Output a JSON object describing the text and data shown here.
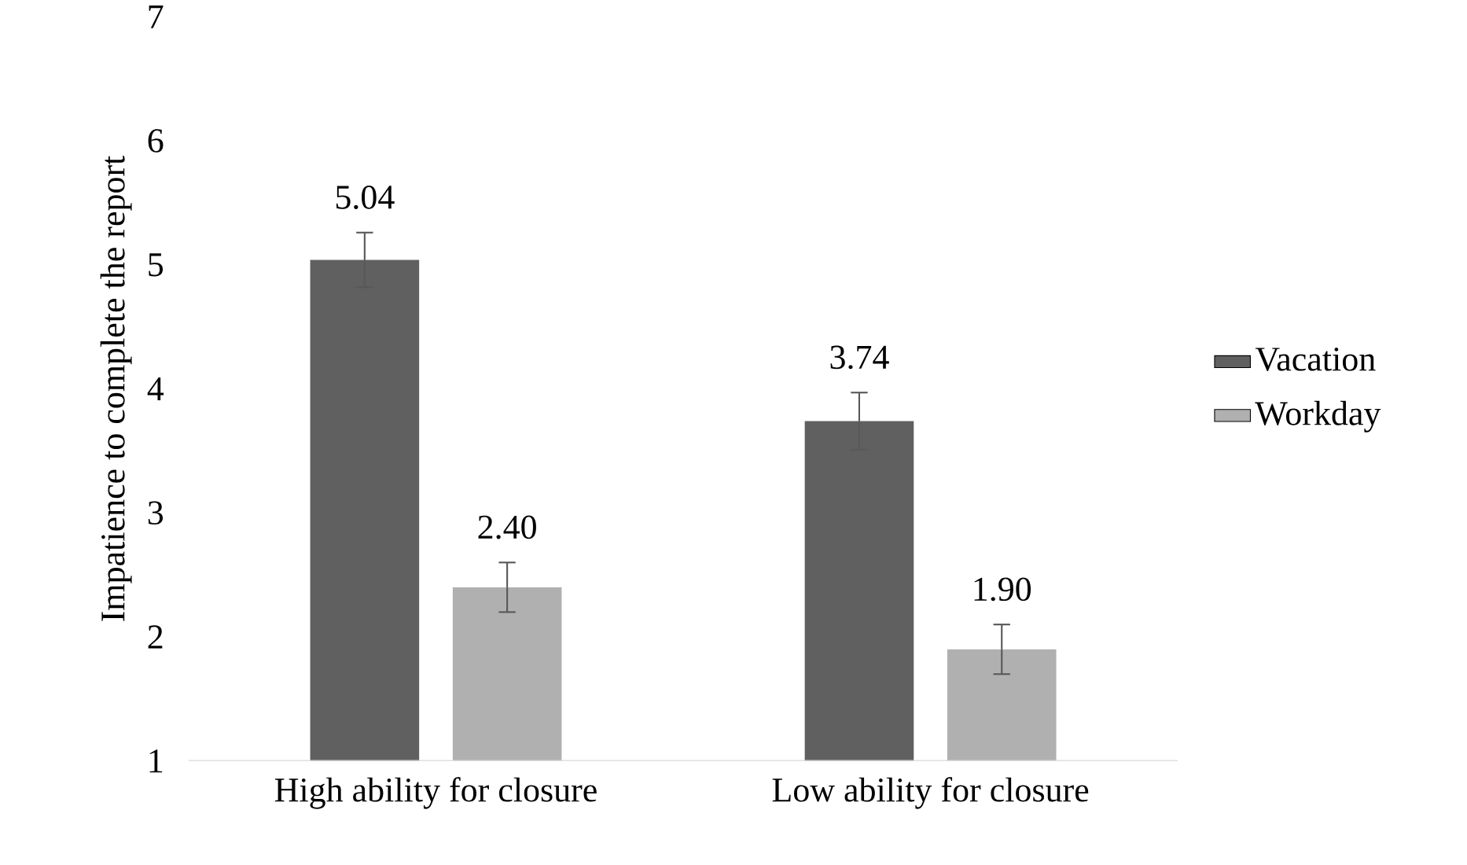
{
  "chart_data": {
    "type": "bar",
    "ylabel": "Impatience to complete the report",
    "categories": [
      "High ability for closure",
      "Low ability for closure"
    ],
    "series": [
      {
        "name": "Vacation",
        "color": "#606060",
        "values": [
          5.04,
          3.74
        ],
        "errors": [
          0.22,
          0.23
        ],
        "value_labels": [
          "5.04",
          "3.74"
        ]
      },
      {
        "name": "Workday",
        "color": "#b0b0b0",
        "values": [
          2.4,
          1.9
        ],
        "errors": [
          0.2,
          0.2
        ],
        "value_labels": [
          "2.40",
          "1.90"
        ]
      }
    ],
    "ylim": [
      1,
      7
    ],
    "yticks": [
      1,
      2,
      3,
      4,
      5,
      6,
      7
    ],
    "grid": false,
    "legend": "right"
  }
}
